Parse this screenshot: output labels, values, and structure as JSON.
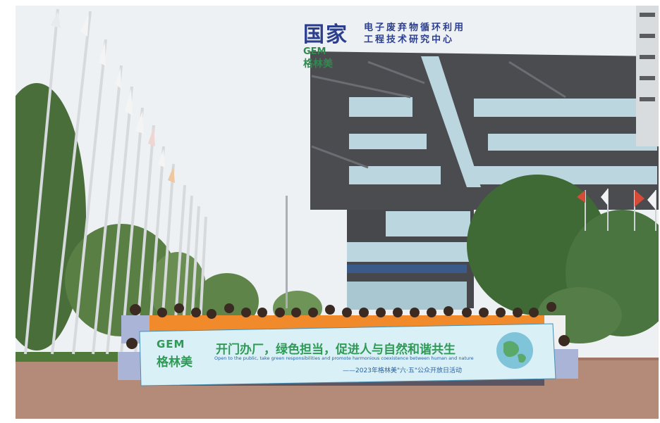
{
  "photo": {
    "description_alt": "Group photo in front of building",
    "building_sign": {
      "big": "国家",
      "line1": "电子废弃物循环利用",
      "line2": "工程技术研究中心"
    },
    "building_logo": {
      "en": "GEM",
      "cn": "格林美"
    },
    "banner": {
      "logo_en": "GEM",
      "logo_cn": "格林美",
      "title": "开门办厂，绿色担当，促进人与自然和谐共生",
      "subtitle_en": "Open to the public, take green responsibilities and promote harmonious coexistence between human and nature",
      "date_line": "——2023年格林美\"六·五\"公众开放日活动"
    }
  },
  "colors": {
    "sky": "#eef1f3",
    "building": "#4b4c50",
    "glass": "#bcd6df",
    "banner_bg": "#d8f0f6",
    "green_text": "#2f9a55",
    "ground": "#b58b78",
    "vest": "#f08a2a"
  }
}
